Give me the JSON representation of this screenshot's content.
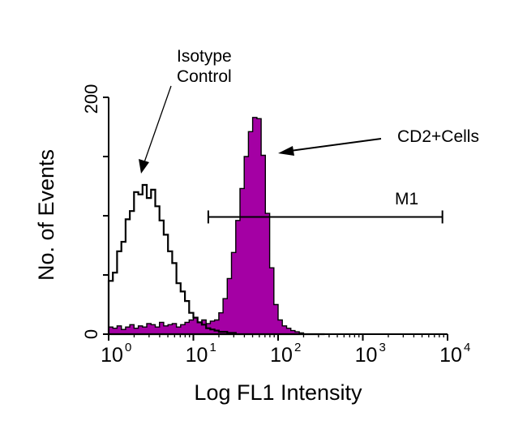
{
  "chart_data": {
    "type": "histogram",
    "xlabel": "Log FL1 Intensity",
    "ylabel": "No. of Events",
    "x_scale": "log",
    "xlim": [
      1,
      10000
    ],
    "ylim": [
      0,
      200
    ],
    "x_tick_labels": [
      {
        "base": "10",
        "exp": "0"
      },
      {
        "base": "10",
        "exp": "1"
      },
      {
        "base": "10",
        "exp": "2"
      },
      {
        "base": "10",
        "exp": "3"
      },
      {
        "base": "10",
        "exp": "4"
      }
    ],
    "y_tick_labels": [
      "0",
      "200"
    ],
    "y_ticks": [
      0,
      50,
      100,
      150,
      200
    ],
    "bin_log10_start": 0,
    "bin_log10_step": 0.05,
    "series": [
      {
        "name": "Isotype Control",
        "style": "outline",
        "color": "#000000",
        "values": [
          45,
          52,
          70,
          78,
          97,
          104,
          120,
          118,
          126,
          115,
          122,
          108,
          96,
          84,
          70,
          60,
          43,
          36,
          28,
          18,
          14,
          10,
          8,
          5,
          4,
          3,
          2,
          2,
          1,
          1,
          0,
          0,
          0,
          0,
          0,
          0,
          0,
          0,
          0,
          0,
          0,
          0,
          0,
          0,
          0,
          0,
          0,
          0,
          0,
          0,
          0
        ]
      },
      {
        "name": "CD2+Cells",
        "style": "filled",
        "color": "#a400a4",
        "values": [
          6,
          5,
          7,
          4,
          6,
          8,
          5,
          7,
          6,
          9,
          8,
          6,
          10,
          7,
          8,
          9,
          6,
          8,
          10,
          12,
          14,
          10,
          12,
          9,
          11,
          12,
          18,
          30,
          47,
          69,
          96,
          123,
          150,
          171,
          183,
          182,
          151,
          102,
          56,
          25,
          12,
          7,
          5,
          3,
          2,
          1,
          0,
          0,
          0,
          0,
          0
        ]
      }
    ],
    "annotations": {
      "isotype_label": [
        "Isotype",
        "Control"
      ],
      "cd2_label": "CD2+Cells",
      "marker": {
        "label": "M1",
        "range": [
          15,
          8700
        ],
        "y": 99
      }
    }
  }
}
